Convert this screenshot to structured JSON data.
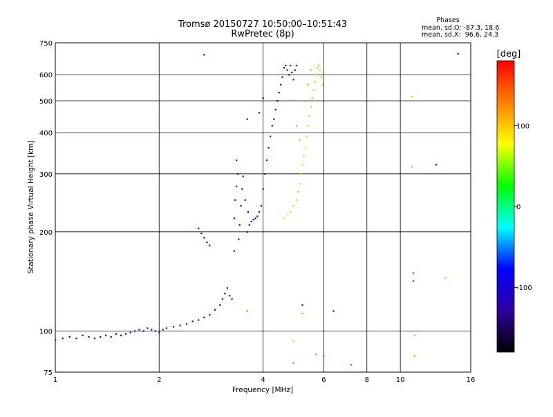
{
  "chart_data": {
    "type": "scatter",
    "title": "Tromsø 20150727 10:50:00–10:51:43",
    "subtitle": "RwPretec (8p)",
    "xlabel": "Frequency [MHz]",
    "ylabel": "Stationary phase Virtual Height [km]",
    "x_scale": "log",
    "y_scale": "log",
    "xlim": [
      1,
      16
    ],
    "ylim": [
      75,
      750
    ],
    "x_ticks": [
      1,
      2,
      4,
      6,
      8,
      10,
      16
    ],
    "x_tick_labels": [
      "1",
      "2",
      "4",
      "6",
      "8",
      "10",
      "16"
    ],
    "y_ticks": [
      75,
      100,
      200,
      300,
      400,
      500,
      600,
      750
    ],
    "y_tick_labels": [
      "75",
      "100",
      "200",
      "300",
      "400",
      "500",
      "600",
      "750"
    ],
    "grid": true,
    "phases": {
      "heading": "Phases",
      "line_o": "mean, sd,O: -87.3, 18.6",
      "line_x": "mean, sd,X:  96.6, 24.3"
    },
    "colorbar": {
      "label": "[deg]",
      "range": [
        -180,
        180
      ],
      "ticks": [
        100,
        0,
        -100
      ],
      "tick_labels": [
        "100",
        "0",
        "-100"
      ],
      "colors": [
        "#ff0000",
        "#ff8000",
        "#ffff00",
        "#00ff00",
        "#00ffff",
        "#0000ff",
        "#3000a0",
        "#000000"
      ]
    },
    "series": [
      {
        "mode": "O",
        "points": [
          [
            1.0,
            94,
            -95
          ],
          [
            1.05,
            95,
            -95
          ],
          [
            1.1,
            96,
            -100
          ],
          [
            1.15,
            95,
            -95
          ],
          [
            1.2,
            97,
            -95
          ],
          [
            1.25,
            96,
            -105
          ],
          [
            1.3,
            95,
            -95
          ],
          [
            1.35,
            96,
            -100
          ],
          [
            1.4,
            97,
            -95
          ],
          [
            1.45,
            96,
            -95
          ],
          [
            1.5,
            98,
            -100
          ],
          [
            1.55,
            97,
            -95
          ],
          [
            1.6,
            98,
            -105
          ],
          [
            1.65,
            99,
            -95
          ],
          [
            1.7,
            100,
            -95
          ],
          [
            1.75,
            101,
            -100
          ],
          [
            1.8,
            100,
            -95
          ],
          [
            1.85,
            102,
            -95
          ],
          [
            1.9,
            101,
            -100
          ],
          [
            1.95,
            100,
            -95
          ],
          [
            2.0,
            99,
            -95
          ],
          [
            2.05,
            101,
            -105
          ],
          [
            2.1,
            102,
            -95
          ],
          [
            2.2,
            103,
            -95
          ],
          [
            2.3,
            104,
            -100
          ],
          [
            2.4,
            105,
            -95
          ],
          [
            2.5,
            107,
            -95
          ],
          [
            2.6,
            108,
            -100
          ],
          [
            2.7,
            110,
            -95
          ],
          [
            2.8,
            112,
            -105
          ],
          [
            2.9,
            116,
            -110
          ],
          [
            3.0,
            120,
            -115
          ],
          [
            3.05,
            125,
            -120
          ],
          [
            3.1,
            130,
            -120
          ],
          [
            3.15,
            135,
            -125
          ],
          [
            3.2,
            128,
            -115
          ],
          [
            3.25,
            125,
            -120
          ],
          [
            2.6,
            205,
            -92
          ],
          [
            2.65,
            198,
            -90
          ],
          [
            2.7,
            192,
            -95
          ],
          [
            2.75,
            186,
            -90
          ],
          [
            2.8,
            182,
            -92
          ],
          [
            3.3,
            175,
            -112
          ],
          [
            3.3,
            220,
            -118
          ],
          [
            3.32,
            250,
            -120
          ],
          [
            3.35,
            275,
            -115
          ],
          [
            3.38,
            300,
            -118
          ],
          [
            3.35,
            330,
            -120
          ],
          [
            3.4,
            190,
            -115
          ],
          [
            3.42,
            210,
            -120
          ],
          [
            3.45,
            240,
            -118
          ],
          [
            3.48,
            270,
            -112
          ],
          [
            3.5,
            295,
            -120
          ],
          [
            3.55,
            250,
            -118
          ],
          [
            3.6,
            200,
            -115
          ],
          [
            3.62,
            230,
            -118
          ],
          [
            3.65,
            210,
            -120
          ],
          [
            3.7,
            215,
            -115
          ],
          [
            3.75,
            218,
            -110
          ],
          [
            3.8,
            220,
            -112
          ],
          [
            3.85,
            223,
            -110
          ],
          [
            3.9,
            230,
            -112
          ],
          [
            3.95,
            240,
            -110
          ],
          [
            4.0,
            270,
            -110
          ],
          [
            4.05,
            300,
            -112
          ],
          [
            4.1,
            330,
            -110
          ],
          [
            4.15,
            360,
            -112
          ],
          [
            4.2,
            390,
            -108
          ],
          [
            4.25,
            420,
            -110
          ],
          [
            4.3,
            440,
            -112
          ],
          [
            4.35,
            470,
            -110
          ],
          [
            4.4,
            500,
            -108
          ],
          [
            4.45,
            530,
            -110
          ],
          [
            4.5,
            560,
            -112
          ],
          [
            4.55,
            590,
            -108
          ],
          [
            4.6,
            630,
            -110
          ],
          [
            4.65,
            640,
            -112
          ],
          [
            4.7,
            620,
            -110
          ],
          [
            4.75,
            600,
            -108
          ],
          [
            4.8,
            640,
            -110
          ],
          [
            4.85,
            610,
            -112
          ],
          [
            4.9,
            580,
            -110
          ],
          [
            4.95,
            620,
            -108
          ],
          [
            5.0,
            640,
            -110
          ],
          [
            3.6,
            440,
            -115
          ],
          [
            3.9,
            460,
            -115
          ],
          [
            2.7,
            690,
            -110
          ],
          [
            4.0,
            510,
            -108
          ],
          [
            12.7,
            320,
            -80
          ],
          [
            14.7,
            695,
            -115
          ],
          [
            6.4,
            115,
            -120
          ],
          [
            5.2,
            120,
            -95
          ]
        ]
      },
      {
        "mode": "X",
        "points": [
          [
            4.6,
            220,
            85
          ],
          [
            4.7,
            225,
            90
          ],
          [
            4.8,
            230,
            95
          ],
          [
            4.9,
            240,
            100
          ],
          [
            5.0,
            250,
            100
          ],
          [
            5.05,
            265,
            105
          ],
          [
            5.1,
            280,
            100
          ],
          [
            5.15,
            300,
            105
          ],
          [
            5.2,
            320,
            95
          ],
          [
            5.25,
            340,
            100
          ],
          [
            5.3,
            360,
            90
          ],
          [
            5.35,
            390,
            95
          ],
          [
            5.4,
            420,
            100
          ],
          [
            5.45,
            450,
            105
          ],
          [
            5.5,
            480,
            100
          ],
          [
            5.55,
            510,
            110
          ],
          [
            5.6,
            540,
            100
          ],
          [
            5.65,
            570,
            105
          ],
          [
            5.7,
            600,
            100
          ],
          [
            5.75,
            630,
            105
          ],
          [
            5.8,
            640,
            110
          ],
          [
            5.85,
            620,
            100
          ],
          [
            5.9,
            590,
            105
          ],
          [
            5.95,
            560,
            100
          ],
          [
            5.0,
            420,
            120
          ],
          [
            5.1,
            380,
            115
          ],
          [
            5.3,
            500,
            125
          ],
          [
            5.4,
            560,
            120
          ],
          [
            5.5,
            620,
            115
          ],
          [
            10.8,
            515,
            105
          ],
          [
            10.8,
            315,
            105
          ],
          [
            10.9,
            150,
            160
          ],
          [
            10.9,
            142,
            155
          ],
          [
            11.0,
            97,
            110
          ],
          [
            11.0,
            84,
            115
          ],
          [
            13.5,
            145,
            105
          ],
          [
            3.6,
            115,
            130
          ],
          [
            4.9,
            93,
            110
          ],
          [
            5.2,
            113,
            120
          ],
          [
            5.7,
            85,
            130
          ],
          [
            6.0,
            84,
            150
          ],
          [
            7.2,
            79,
            160
          ],
          [
            4.9,
            80,
            140
          ]
        ]
      }
    ]
  }
}
